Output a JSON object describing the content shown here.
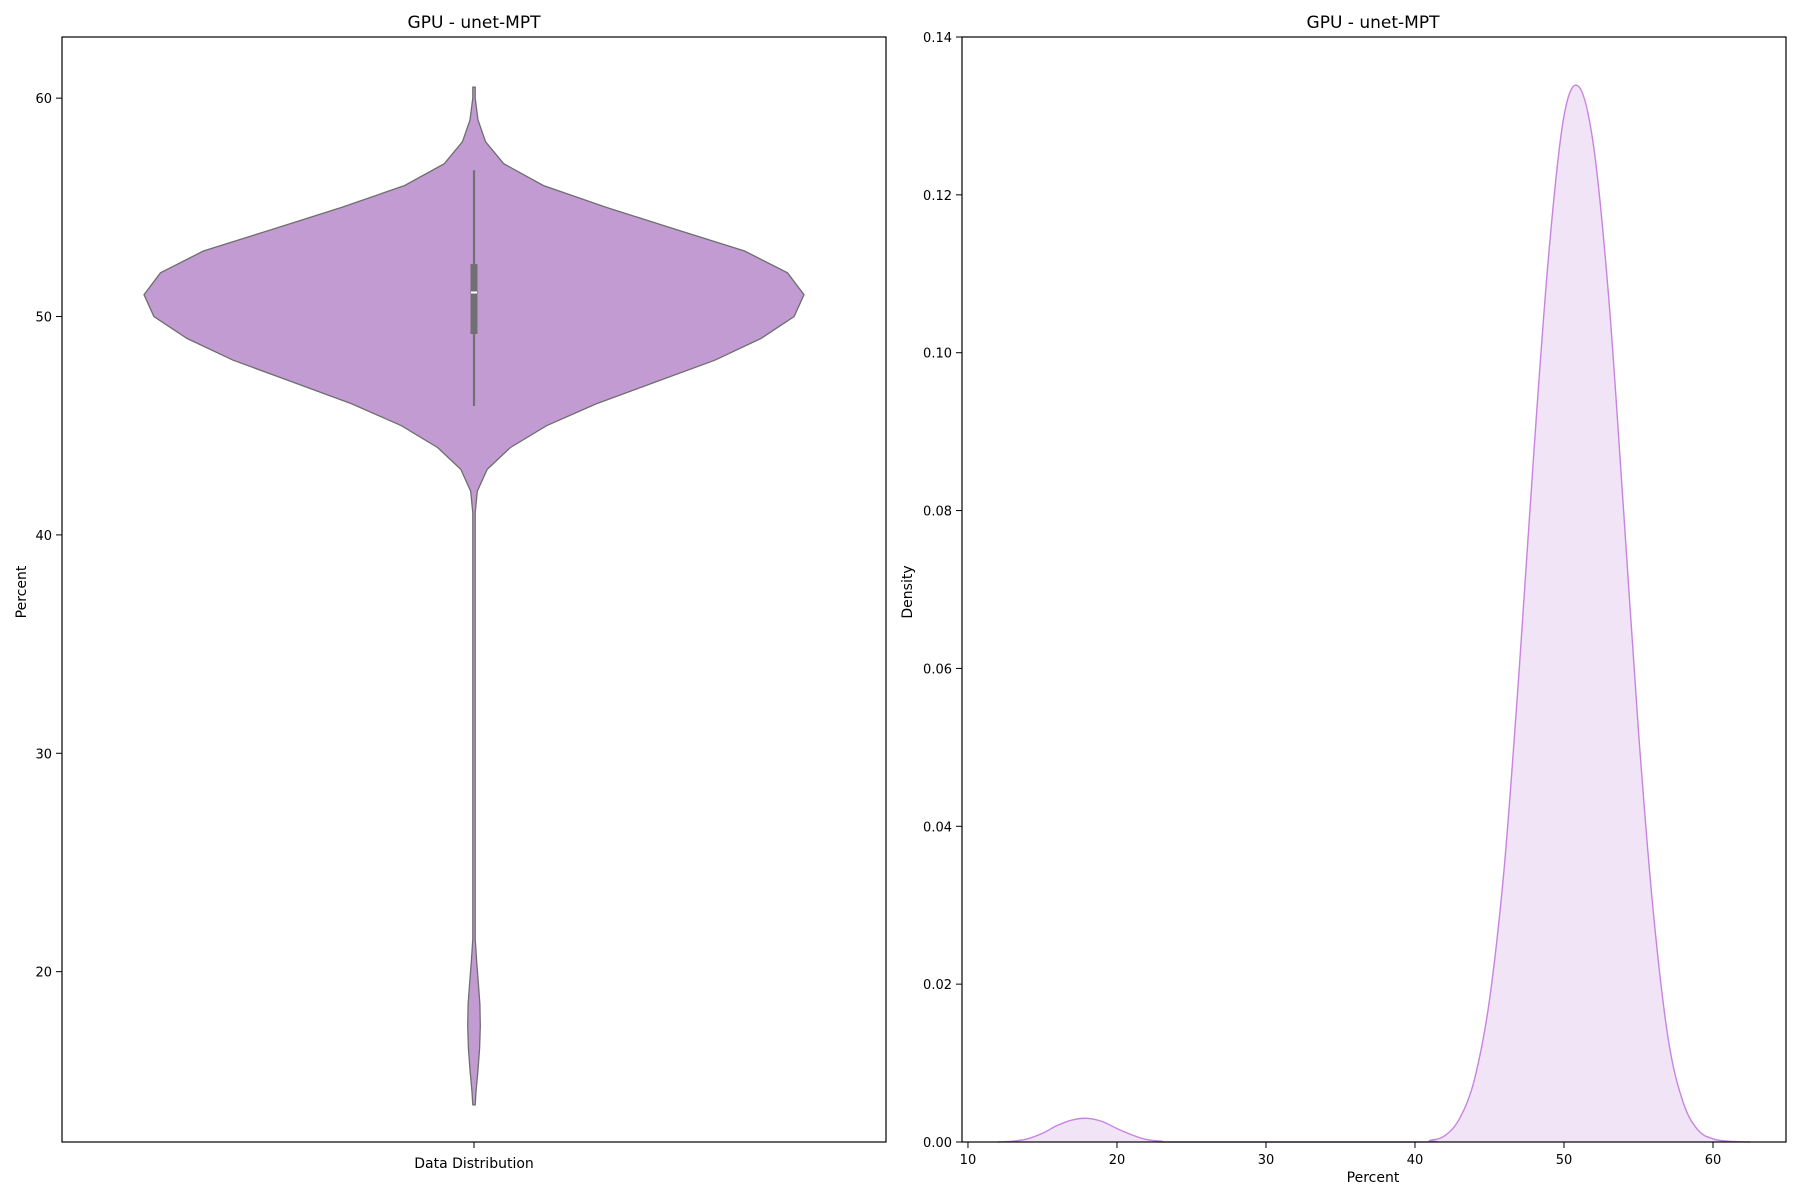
{
  "chart_data": [
    {
      "type": "violin",
      "title": "GPU - unet-MPT",
      "xlabel": "Data Distribution",
      "ylabel": "Percent",
      "ylim": [
        12.2,
        62.8
      ],
      "yticks": [
        20,
        30,
        40,
        50,
        60
      ],
      "color": "#c39bd3",
      "edge_color": "#6e6e6e",
      "box_color": "#707070",
      "violin_range": [
        13.9,
        60.5
      ],
      "box": {
        "q1": 49.2,
        "median": 51.1,
        "q3": 52.4,
        "whisker_low": 45.9,
        "whisker_high": 56.7
      },
      "density_profile": [
        [
          13.9,
          0.0
        ],
        [
          14.5,
          0.006
        ],
        [
          15.5,
          0.012
        ],
        [
          16.5,
          0.017
        ],
        [
          17.5,
          0.019
        ],
        [
          18.5,
          0.018
        ],
        [
          19.5,
          0.013
        ],
        [
          20.5,
          0.008
        ],
        [
          21.5,
          0.003
        ],
        [
          22.5,
          0.0
        ],
        [
          41.0,
          0.0
        ],
        [
          42.0,
          0.01
        ],
        [
          43.0,
          0.04
        ],
        [
          44.0,
          0.11
        ],
        [
          45.0,
          0.22
        ],
        [
          46.0,
          0.37
        ],
        [
          47.0,
          0.55
        ],
        [
          48.0,
          0.73
        ],
        [
          49.0,
          0.87
        ],
        [
          50.0,
          0.97
        ],
        [
          51.0,
          1.0
        ],
        [
          52.0,
          0.95
        ],
        [
          53.0,
          0.82
        ],
        [
          54.0,
          0.61
        ],
        [
          55.0,
          0.4
        ],
        [
          56.0,
          0.21
        ],
        [
          57.0,
          0.09
        ],
        [
          58.0,
          0.035
        ],
        [
          59.0,
          0.012
        ],
        [
          60.0,
          0.003
        ],
        [
          60.5,
          0.0
        ]
      ]
    },
    {
      "type": "area",
      "title": "GPU - unet-MPT",
      "xlabel": "Percent",
      "ylabel": "Density",
      "xlim": [
        9.6,
        64.9
      ],
      "ylim": [
        0.0,
        0.14
      ],
      "xticks": [
        10,
        20,
        30,
        40,
        50,
        60
      ],
      "yticks": [
        "0.00",
        "0.02",
        "0.04",
        "0.06",
        "0.08",
        "0.10",
        "0.12",
        "0.14"
      ],
      "line_color": "#c883e0",
      "fill_color": "#f1e4f6",
      "points": [
        [
          12.0,
          0.0
        ],
        [
          13.0,
          0.0001
        ],
        [
          14.0,
          0.0004
        ],
        [
          15.0,
          0.0011
        ],
        [
          16.0,
          0.0021
        ],
        [
          17.0,
          0.0028
        ],
        [
          18.0,
          0.003
        ],
        [
          19.0,
          0.0026
        ],
        [
          20.0,
          0.0017
        ],
        [
          21.0,
          0.0009
        ],
        [
          22.0,
          0.0003
        ],
        [
          23.0,
          0.0001
        ],
        [
          24.0,
          0.0
        ],
        [
          40.0,
          0.0
        ],
        [
          41.0,
          0.0002
        ],
        [
          42.0,
          0.0008
        ],
        [
          43.0,
          0.003
        ],
        [
          44.0,
          0.008
        ],
        [
          45.0,
          0.018
        ],
        [
          46.0,
          0.035
        ],
        [
          47.0,
          0.06
        ],
        [
          48.0,
          0.088
        ],
        [
          49.0,
          0.113
        ],
        [
          50.0,
          0.13
        ],
        [
          51.0,
          0.1337
        ],
        [
          52.0,
          0.126
        ],
        [
          53.0,
          0.107
        ],
        [
          54.0,
          0.08
        ],
        [
          55.0,
          0.052
        ],
        [
          56.0,
          0.029
        ],
        [
          57.0,
          0.013
        ],
        [
          58.0,
          0.005
        ],
        [
          59.0,
          0.0015
        ],
        [
          60.0,
          0.0004
        ],
        [
          61.0,
          0.0001
        ],
        [
          62.5,
          0.0
        ]
      ]
    }
  ]
}
